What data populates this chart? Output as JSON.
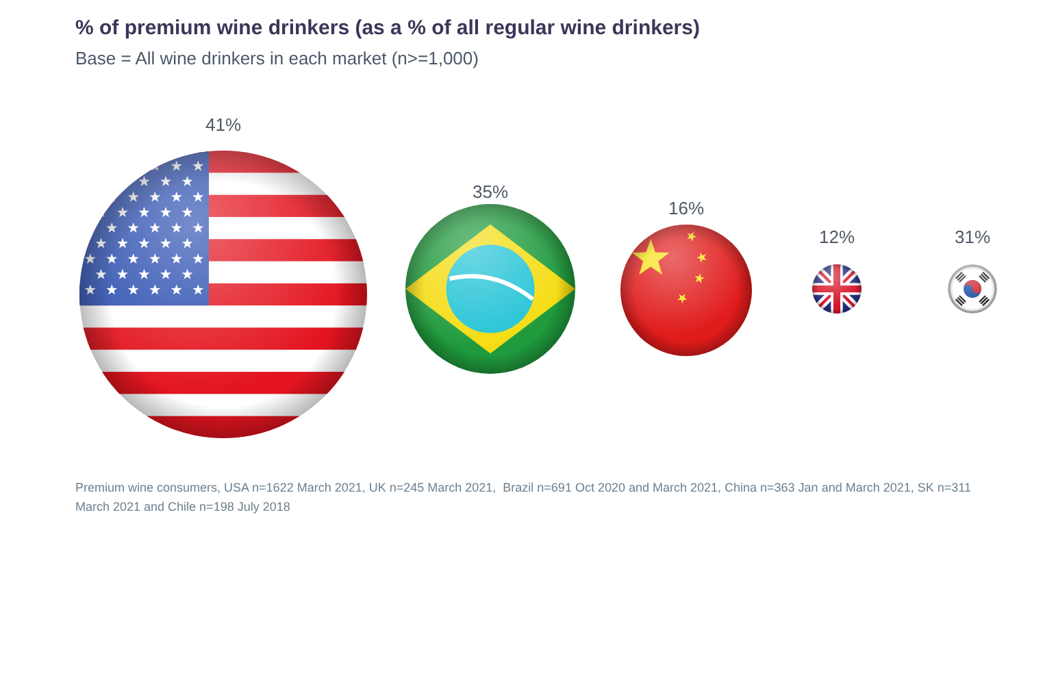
{
  "chart_data": {
    "type": "other",
    "title": "% of premium wine drinkers (as a % of all regular wine drinkers)",
    "subtitle": "Base = All wine drinkers in each market (n>=1,000)",
    "categories": [
      null,
      null,
      null,
      null,
      null
    ],
    "values": [
      41,
      35,
      16,
      12,
      31
    ],
    "value_labels": [
      "41%",
      "35%",
      "16%",
      "12%",
      "31%"
    ],
    "annotations": [
      "Premium wine consumers, USA n=1622 March 2021, UK n=245 March 2021,  Brazil n=691 Oct 2020 and March 2021, China n=363 Jan and March 2021, SK n=311 March 2021 and Chile n=198 July 2018"
    ]
  }
}
